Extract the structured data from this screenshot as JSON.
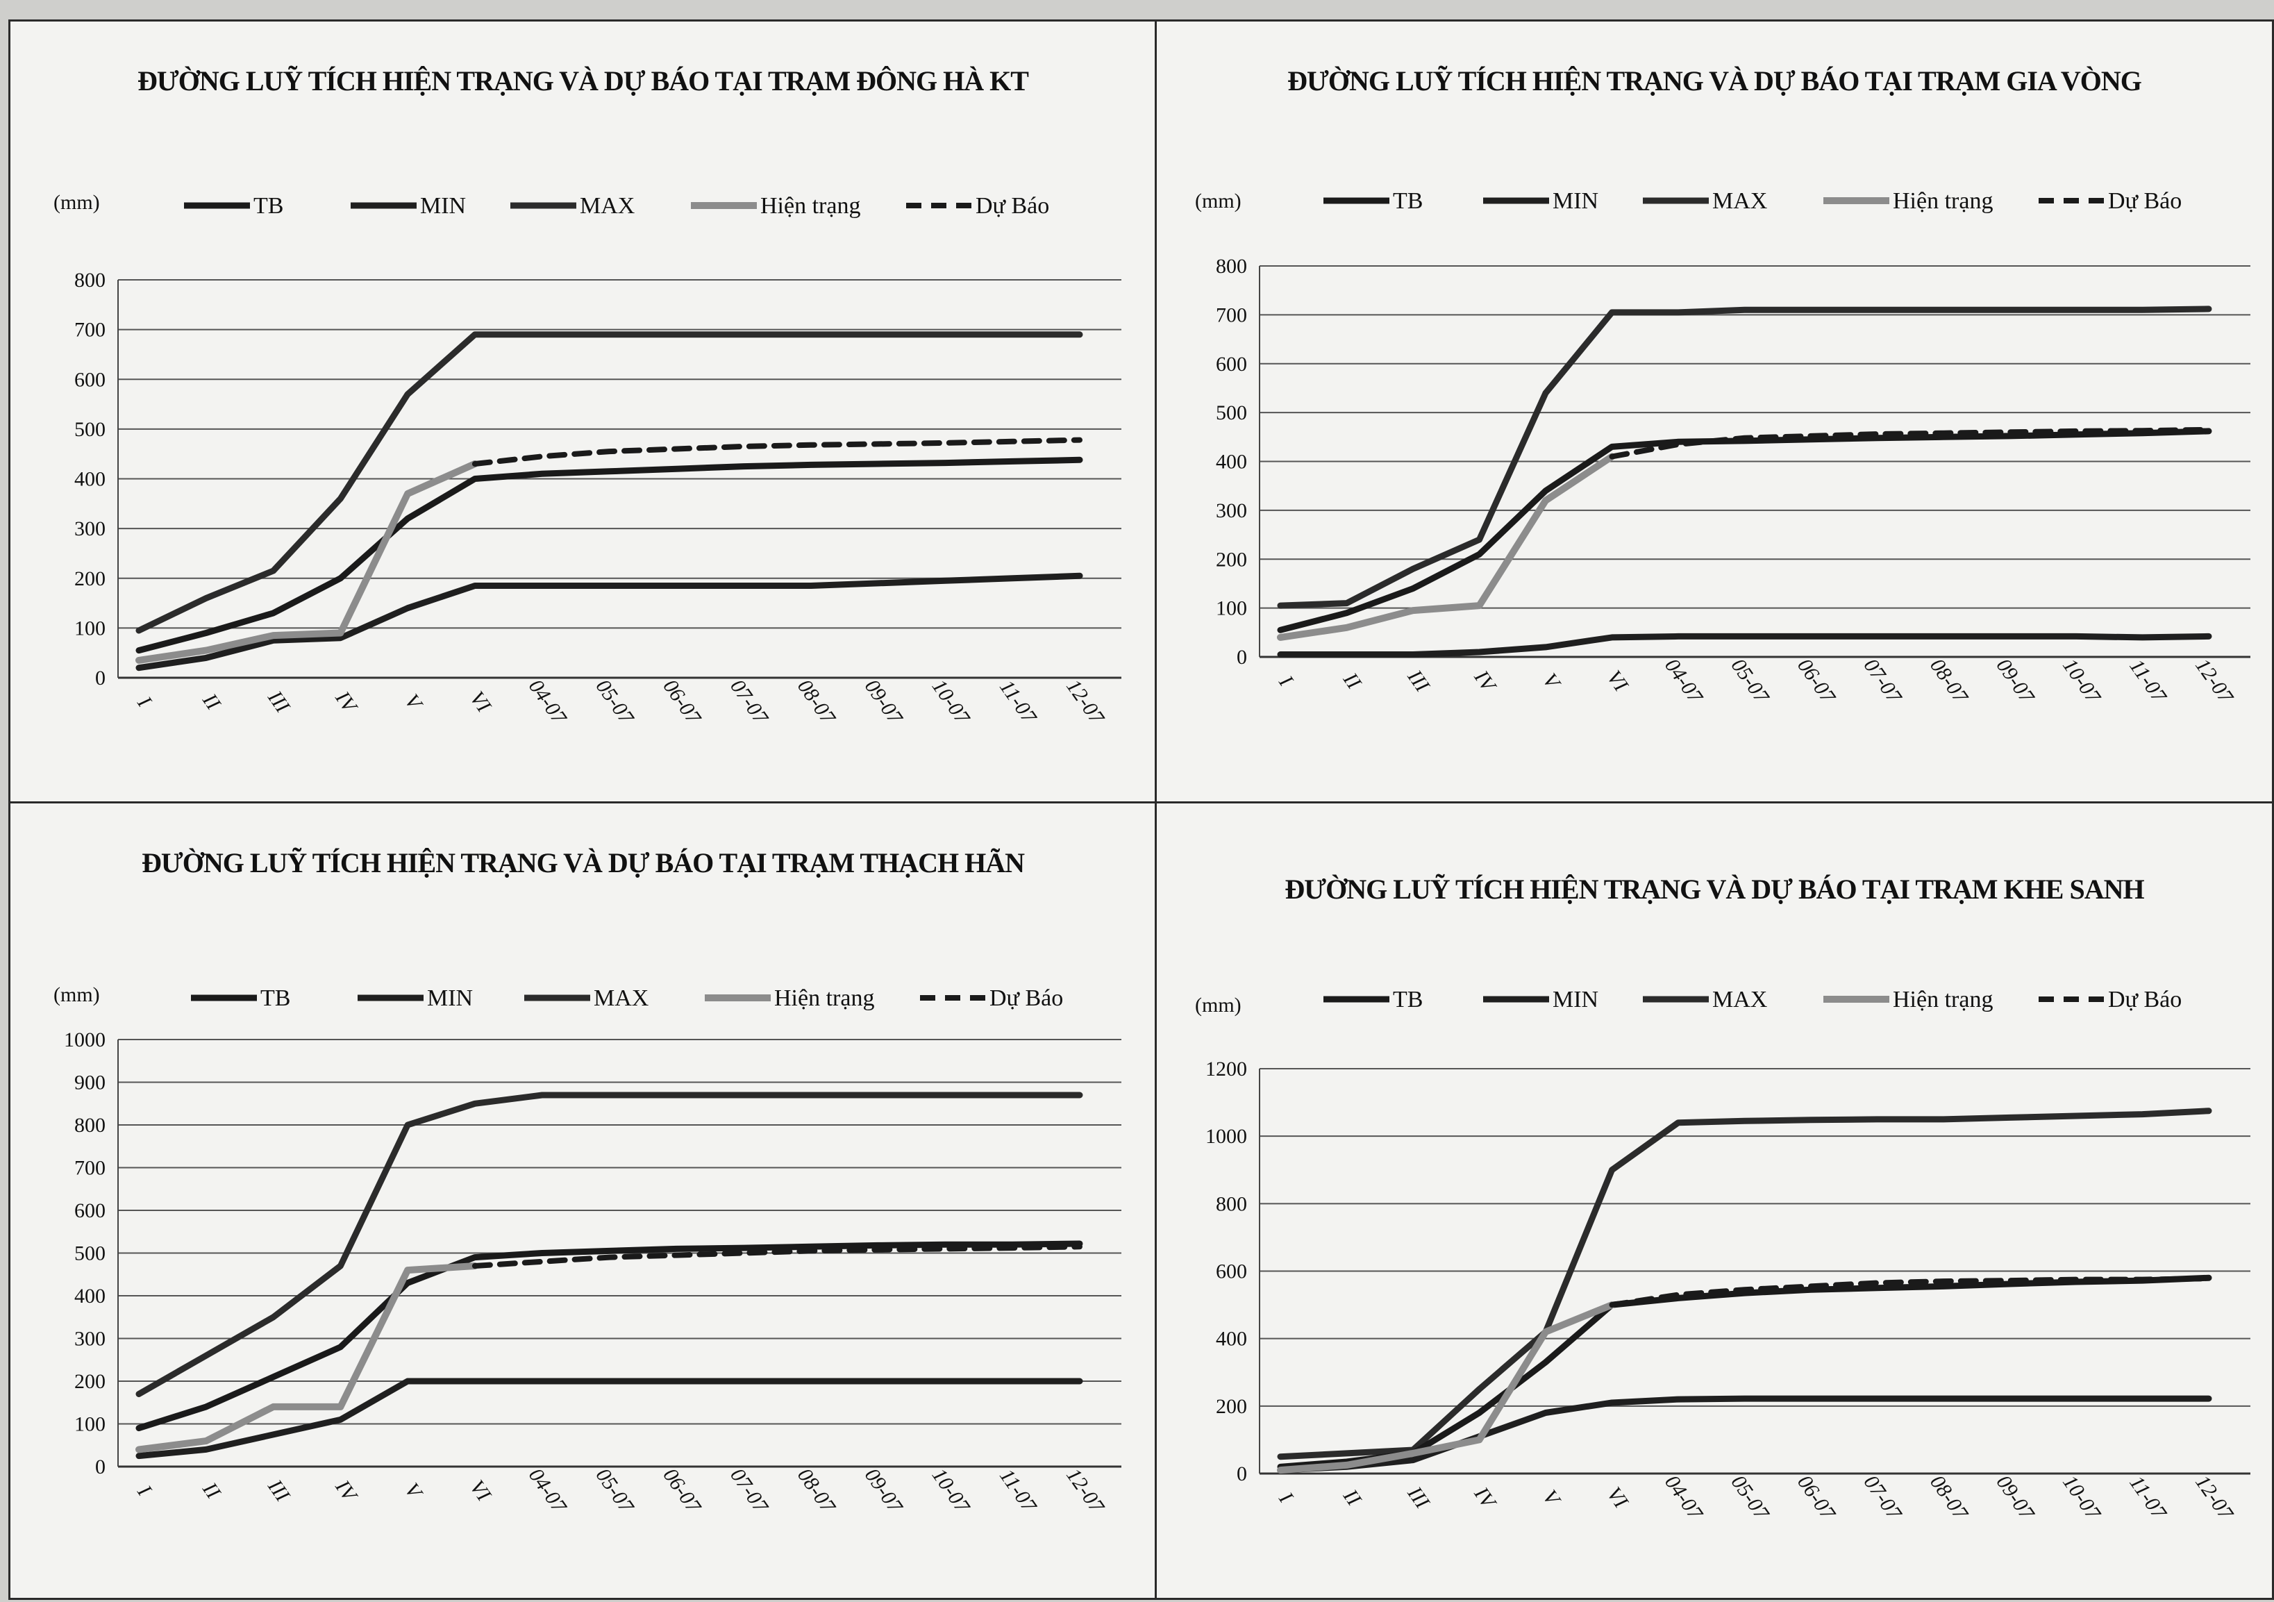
{
  "styles": {
    "TB": {
      "color": "#1a1a1a",
      "width": 9,
      "dash": ""
    },
    "MIN": {
      "color": "#1f1f1f",
      "width": 9,
      "dash": ""
    },
    "MAX": {
      "color": "#2b2b2b",
      "width": 9,
      "dash": ""
    },
    "Hiện trạng": {
      "color": "#8c8c8c",
      "width": 10,
      "dash": ""
    },
    "Dự Báo": {
      "color": "#1a1a1a",
      "width": 8,
      "dash": "22,14"
    }
  },
  "chart_data": [
    {
      "type": "line",
      "title": "ĐƯỜNG LUỸ TÍCH HIỆN TRẠNG VÀ DỰ BÁO TẠI TRẠM ĐÔNG HÀ KT",
      "ylabel": "(mm)",
      "ylim": [
        0,
        800
      ],
      "yticks": [
        0,
        100,
        200,
        300,
        400,
        500,
        600,
        700,
        800
      ],
      "categories": [
        "I",
        "II",
        "III",
        "IV",
        "V",
        "VI",
        "04-07",
        "05-07",
        "06-07",
        "07-07",
        "08-07",
        "09-07",
        "10-07",
        "11-07",
        "12-07"
      ],
      "legend": [
        "TB",
        "MIN",
        "MAX",
        "Hiện trạng",
        "Dự Báo"
      ],
      "series": [
        {
          "name": "MAX",
          "values": [
            95,
            160,
            215,
            360,
            570,
            690,
            690,
            690,
            690,
            690,
            690,
            690,
            690,
            690,
            690
          ]
        },
        {
          "name": "TB",
          "values": [
            55,
            90,
            130,
            200,
            320,
            400,
            410,
            415,
            420,
            425,
            428,
            430,
            432,
            435,
            438
          ]
        },
        {
          "name": "MIN",
          "values": [
            20,
            40,
            75,
            80,
            140,
            185,
            185,
            185,
            185,
            185,
            185,
            190,
            195,
            200,
            205
          ]
        },
        {
          "name": "Hiện trạng",
          "values": [
            35,
            55,
            85,
            90,
            370,
            430,
            null,
            null,
            null,
            null,
            null,
            null,
            null,
            null,
            null
          ]
        },
        {
          "name": "Dự Báo",
          "values": [
            null,
            null,
            null,
            null,
            null,
            430,
            445,
            455,
            460,
            465,
            468,
            470,
            472,
            475,
            478
          ]
        }
      ]
    },
    {
      "type": "line",
      "title": "ĐƯỜNG LUỸ TÍCH HIỆN TRẠNG VÀ DỰ BÁO TẠI TRẠM GIA VÒNG",
      "ylabel": "(mm)",
      "ylim": [
        0,
        800
      ],
      "yticks": [
        0,
        100,
        200,
        300,
        400,
        500,
        600,
        700,
        800
      ],
      "categories": [
        "I",
        "II",
        "III",
        "IV",
        "V",
        "VI",
        "04-07",
        "05-07",
        "06-07",
        "07-07",
        "08-07",
        "09-07",
        "10-07",
        "11-07",
        "12-07"
      ],
      "legend": [
        "TB",
        "MIN",
        "MAX",
        "Hiện trạng",
        "Dự Báo"
      ],
      "series": [
        {
          "name": "MAX",
          "values": [
            105,
            110,
            180,
            240,
            540,
            705,
            705,
            710,
            710,
            710,
            710,
            710,
            710,
            710,
            712
          ]
        },
        {
          "name": "TB",
          "values": [
            55,
            90,
            140,
            210,
            340,
            430,
            440,
            442,
            445,
            448,
            450,
            452,
            455,
            458,
            462
          ]
        },
        {
          "name": "MIN",
          "values": [
            5,
            5,
            5,
            10,
            20,
            40,
            42,
            42,
            42,
            42,
            42,
            42,
            42,
            40,
            42
          ]
        },
        {
          "name": "Hiện trạng",
          "values": [
            40,
            60,
            95,
            105,
            320,
            410,
            null,
            null,
            null,
            null,
            null,
            null,
            null,
            null,
            null
          ]
        },
        {
          "name": "Dự Báo",
          "values": [
            null,
            null,
            null,
            null,
            null,
            410,
            435,
            448,
            452,
            456,
            458,
            460,
            462,
            463,
            465
          ]
        }
      ]
    },
    {
      "type": "line",
      "title": "ĐƯỜNG LUỸ TÍCH HIỆN TRẠNG VÀ DỰ BÁO TẠI TRẠM THẠCH HÃN",
      "ylabel": "(mm)",
      "ylim": [
        0,
        1000
      ],
      "yticks": [
        0,
        100,
        200,
        300,
        400,
        500,
        600,
        700,
        800,
        900,
        1000
      ],
      "categories": [
        "I",
        "II",
        "III",
        "IV",
        "V",
        "VI",
        "04-07",
        "05-07",
        "06-07",
        "07-07",
        "08-07",
        "09-07",
        "10-07",
        "11-07",
        "12-07"
      ],
      "legend": [
        "TB",
        "MIN",
        "MAX",
        "Hiện trạng",
        "Dự Báo"
      ],
      "series": [
        {
          "name": "MAX",
          "values": [
            170,
            260,
            350,
            470,
            800,
            850,
            870,
            870,
            870,
            870,
            870,
            870,
            870,
            870,
            870
          ]
        },
        {
          "name": "TB",
          "values": [
            90,
            140,
            210,
            280,
            430,
            490,
            500,
            505,
            510,
            512,
            515,
            518,
            520,
            520,
            522
          ]
        },
        {
          "name": "MIN",
          "values": [
            25,
            40,
            75,
            110,
            200,
            200,
            200,
            200,
            200,
            200,
            200,
            200,
            200,
            200,
            200
          ]
        },
        {
          "name": "Hiện trạng",
          "values": [
            40,
            60,
            140,
            140,
            460,
            470,
            null,
            null,
            null,
            null,
            null,
            null,
            null,
            null,
            null
          ]
        },
        {
          "name": "Dự Báo",
          "values": [
            null,
            null,
            null,
            null,
            null,
            470,
            480,
            490,
            495,
            500,
            505,
            508,
            510,
            512,
            515
          ]
        }
      ]
    },
    {
      "type": "line",
      "title": "ĐƯỜNG LUỸ TÍCH HIỆN TRẠNG VÀ DỰ BÁO TẠI TRẠM KHE SANH",
      "ylabel": "(mm)",
      "ylim": [
        0,
        1200
      ],
      "yticks": [
        0,
        200,
        400,
        600,
        800,
        1000,
        1200
      ],
      "categories": [
        "I",
        "II",
        "III",
        "IV",
        "V",
        "VI",
        "04-07",
        "05-07",
        "06-07",
        "07-07",
        "08-07",
        "09-07",
        "10-07",
        "11-07",
        "12-07"
      ],
      "legend": [
        "TB",
        "MIN",
        "MAX",
        "Hiện trạng",
        "Dự Báo"
      ],
      "series": [
        {
          "name": "MAX",
          "values": [
            50,
            60,
            70,
            250,
            420,
            900,
            1040,
            1045,
            1048,
            1050,
            1050,
            1055,
            1060,
            1065,
            1075
          ]
        },
        {
          "name": "TB",
          "values": [
            20,
            35,
            60,
            180,
            330,
            500,
            520,
            535,
            545,
            550,
            555,
            562,
            568,
            572,
            580
          ]
        },
        {
          "name": "MIN",
          "values": [
            10,
            20,
            40,
            110,
            180,
            210,
            220,
            222,
            222,
            222,
            222,
            222,
            222,
            222,
            222
          ]
        },
        {
          "name": "Hiện trạng",
          "values": [
            10,
            25,
            60,
            100,
            420,
            500,
            null,
            null,
            null,
            null,
            null,
            null,
            null,
            null,
            null
          ]
        },
        {
          "name": "Dự Báo",
          "values": [
            null,
            null,
            null,
            null,
            null,
            500,
            530,
            545,
            555,
            565,
            570,
            572,
            575,
            575,
            578
          ]
        }
      ]
    }
  ]
}
